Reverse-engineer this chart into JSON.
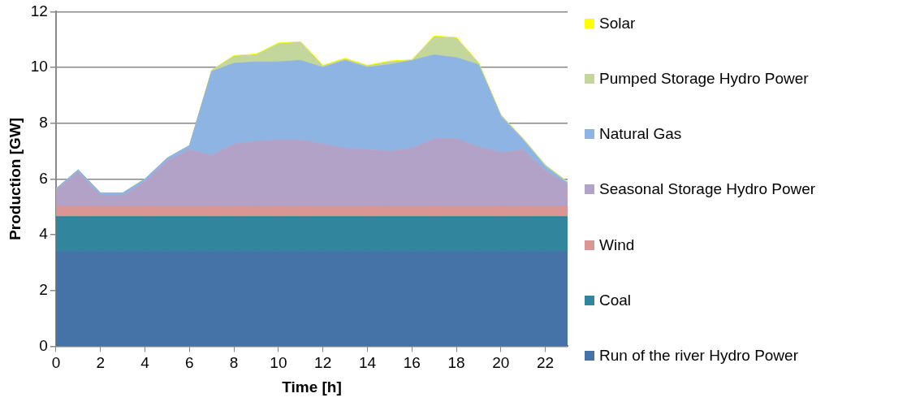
{
  "chart_data": {
    "type": "area",
    "stacked": true,
    "xlabel": "Time [h]",
    "ylabel": "Production [GW]",
    "x": [
      0,
      1,
      2,
      3,
      4,
      5,
      6,
      7,
      8,
      9,
      10,
      11,
      12,
      13,
      14,
      15,
      16,
      17,
      18,
      19,
      20,
      21,
      22,
      23
    ],
    "xlim": [
      0,
      23
    ],
    "xticks": [
      0,
      2,
      4,
      6,
      8,
      10,
      12,
      14,
      16,
      18,
      20,
      22
    ],
    "ylim": [
      0,
      12
    ],
    "yticks": [
      0,
      2,
      4,
      6,
      8,
      10,
      12
    ],
    "grid": "y",
    "legend": "right",
    "marker": "none",
    "series": [
      {
        "name": "Run of the river Hydro Power",
        "color": "#4572a7",
        "values": [
          3.4,
          3.4,
          3.4,
          3.4,
          3.4,
          3.4,
          3.4,
          3.4,
          3.4,
          3.4,
          3.4,
          3.4,
          3.4,
          3.4,
          3.4,
          3.4,
          3.4,
          3.4,
          3.4,
          3.4,
          3.4,
          3.4,
          3.4,
          3.4
        ]
      },
      {
        "name": "Coal",
        "color": "#31859c",
        "values": [
          1.25,
          1.25,
          1.25,
          1.25,
          1.25,
          1.25,
          1.25,
          1.25,
          1.25,
          1.25,
          1.25,
          1.25,
          1.25,
          1.25,
          1.25,
          1.25,
          1.25,
          1.25,
          1.25,
          1.25,
          1.25,
          1.25,
          1.25,
          1.25
        ]
      },
      {
        "name": "Wind",
        "color": "#d99694",
        "values": [
          0.37,
          0.37,
          0.37,
          0.37,
          0.37,
          0.37,
          0.37,
          0.37,
          0.37,
          0.37,
          0.37,
          0.37,
          0.37,
          0.37,
          0.37,
          0.37,
          0.37,
          0.37,
          0.37,
          0.37,
          0.37,
          0.37,
          0.37,
          0.37
        ]
      },
      {
        "name": "Seasonal Storage Hydro Power",
        "color": "#b3a2c7",
        "values": [
          0.58,
          1.23,
          0.38,
          0.38,
          0.88,
          1.63,
          2.03,
          1.83,
          2.23,
          2.33,
          2.38,
          2.38,
          2.23,
          2.08,
          2.03,
          1.98,
          2.08,
          2.43,
          2.43,
          2.13,
          1.93,
          2.03,
          1.28,
          0.78
        ]
      },
      {
        "name": "Natural Gas",
        "color": "#8eb4e3",
        "values": [
          0.05,
          0.08,
          0.1,
          0.1,
          0.1,
          0.1,
          0.15,
          3.0,
          2.9,
          2.85,
          2.8,
          2.85,
          2.75,
          3.15,
          2.95,
          3.1,
          3.15,
          3.0,
          2.9,
          2.95,
          1.3,
          0.35,
          0.15,
          0.05
        ]
      },
      {
        "name": "Pumped Storage Hydro Power",
        "color": "#c3d69b",
        "values": [
          0,
          0,
          0,
          0,
          0,
          0,
          0,
          0.05,
          0.25,
          0.25,
          0.65,
          0.65,
          0.05,
          0.05,
          0.05,
          0.1,
          0,
          0.65,
          0.7,
          0.05,
          0.05,
          0.05,
          0.05,
          0.05
        ]
      },
      {
        "name": "Solar",
        "color": "#ffff00",
        "values": [
          0,
          0,
          0,
          0,
          0,
          0,
          0,
          0,
          0.03,
          0.03,
          0.03,
          0.03,
          0.03,
          0.03,
          0.03,
          0.03,
          0.03,
          0.03,
          0.03,
          0.03,
          0,
          0,
          0,
          0
        ]
      }
    ]
  }
}
